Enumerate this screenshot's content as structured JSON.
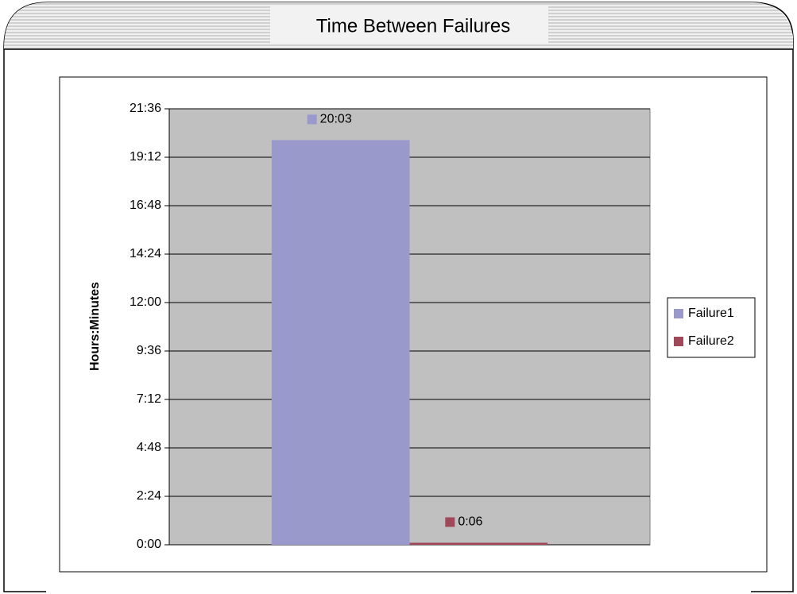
{
  "chart_data": {
    "type": "bar",
    "title": "Time Between Failures",
    "y_label": "Hours:Minutes",
    "categories": [
      null
    ],
    "series": [
      {
        "name": "Failure1",
        "color": "#9999cc",
        "values": [
          1203
        ],
        "value_labels": [
          "20:03"
        ]
      },
      {
        "name": "Failure2",
        "color": "#a0485a",
        "values": [
          6
        ],
        "value_labels": [
          "0:06"
        ]
      }
    ],
    "ylim": [
      0,
      1296
    ],
    "yticks": [
      {
        "value": 0,
        "label": "0:00"
      },
      {
        "value": 144,
        "label": "2:24"
      },
      {
        "value": 288,
        "label": "4:48"
      },
      {
        "value": 432,
        "label": "7:12"
      },
      {
        "value": 576,
        "label": "9:36"
      },
      {
        "value": 720,
        "label": "12:00"
      },
      {
        "value": 864,
        "label": "14:24"
      },
      {
        "value": 1008,
        "label": "16:48"
      },
      {
        "value": 1152,
        "label": "19:12"
      },
      {
        "value": 1296,
        "label": "21:36"
      }
    ],
    "grid": true,
    "legend": "right"
  }
}
